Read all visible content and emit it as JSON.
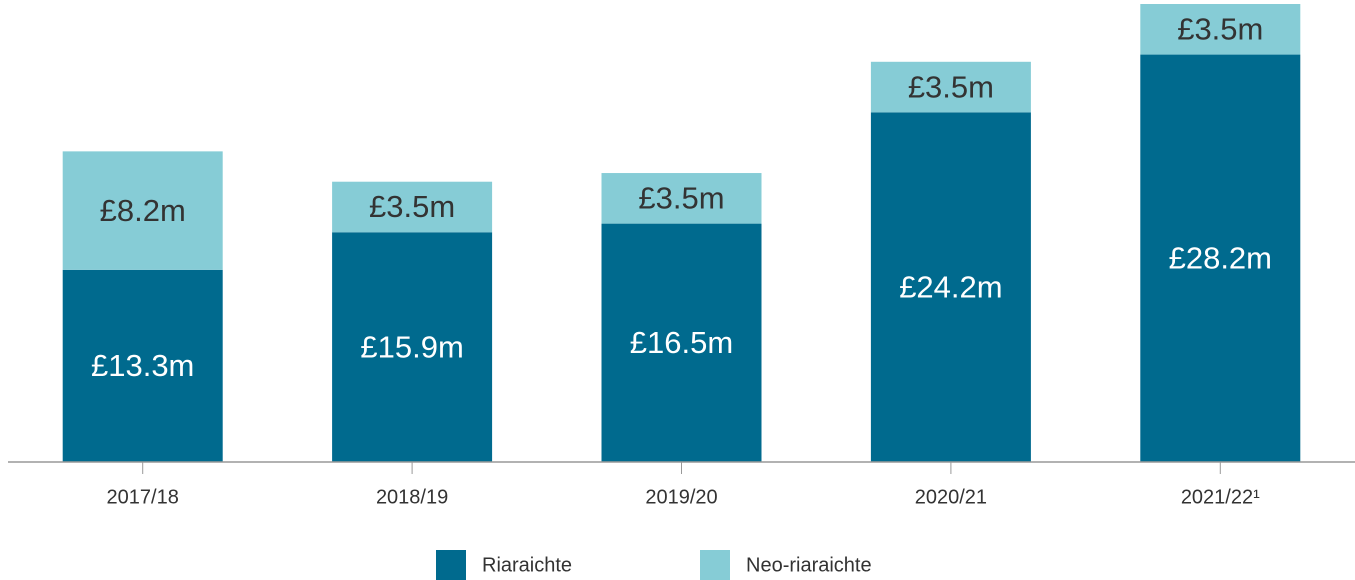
{
  "chart_data": {
    "type": "bar",
    "stacked": true,
    "categories": [
      "2017/18",
      "2018/19",
      "2019/20",
      "2020/21",
      "2021/22¹"
    ],
    "series": [
      {
        "name": "Riaraichte",
        "color": "#006a8e",
        "values": [
          13.3,
          15.9,
          16.5,
          24.2,
          28.2
        ],
        "value_labels": [
          "£13.3m",
          "£15.9m",
          "£16.5m",
          "£24.2m",
          "£28.2m"
        ]
      },
      {
        "name": "Neo-riaraichte",
        "color": "#86ccd6",
        "values": [
          8.2,
          3.5,
          3.5,
          3.5,
          3.5
        ],
        "value_labels": [
          "£8.2m",
          "£3.5m",
          "£3.5m",
          "£3.5m",
          "£3.5m"
        ]
      }
    ],
    "legend": "bottom"
  }
}
